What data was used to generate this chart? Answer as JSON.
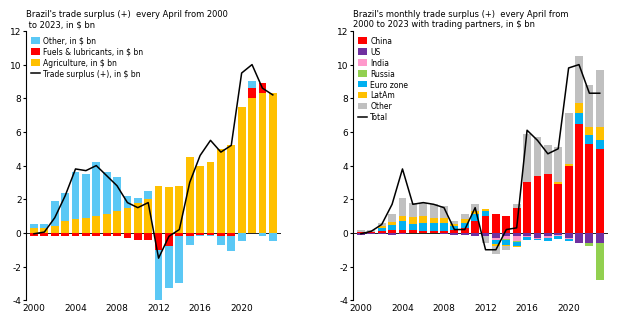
{
  "years": [
    2000,
    2001,
    2002,
    2003,
    2004,
    2005,
    2006,
    2007,
    2008,
    2009,
    2010,
    2011,
    2012,
    2013,
    2014,
    2015,
    2016,
    2017,
    2018,
    2019,
    2020,
    2021,
    2022,
    2023
  ],
  "left": {
    "agriculture": [
      0.3,
      0.3,
      0.4,
      0.7,
      0.8,
      0.9,
      1.0,
      1.1,
      1.3,
      1.5,
      1.8,
      2.0,
      2.8,
      2.7,
      2.8,
      4.5,
      4.0,
      4.2,
      5.0,
      5.2,
      7.5,
      8.0,
      8.3,
      8.3
    ],
    "fuels": [
      -0.2,
      -0.2,
      -0.2,
      -0.2,
      -0.2,
      -0.2,
      -0.2,
      -0.2,
      -0.2,
      -0.3,
      -0.4,
      -0.4,
      -1.0,
      -0.8,
      -0.2,
      -0.2,
      -0.1,
      -0.1,
      -0.2,
      -0.2,
      0.0,
      0.6,
      0.6,
      0.0
    ],
    "other": [
      0.2,
      0.2,
      1.5,
      1.7,
      2.8,
      2.6,
      3.2,
      2.5,
      2.0,
      0.7,
      0.3,
      0.5,
      -4.5,
      -2.5,
      -2.8,
      -0.5,
      -0.1,
      -0.1,
      -0.5,
      -0.9,
      -0.5,
      0.4,
      -0.2,
      -0.5
    ],
    "line": [
      -0.05,
      0.05,
      0.9,
      2.2,
      3.8,
      3.7,
      4.0,
      3.4,
      2.8,
      1.8,
      1.5,
      1.8,
      -1.5,
      -0.2,
      0.2,
      3.0,
      4.6,
      5.5,
      4.8,
      5.2,
      9.5,
      10.0,
      8.6,
      8.2
    ]
  },
  "right": {
    "china": [
      0.05,
      0.05,
      0.1,
      0.15,
      0.2,
      0.15,
      0.1,
      0.1,
      0.1,
      0.2,
      0.3,
      0.7,
      1.0,
      1.1,
      1.0,
      1.5,
      3.0,
      3.4,
      3.5,
      2.9,
      4.0,
      6.5,
      5.3,
      5.0
    ],
    "us": [
      -0.1,
      -0.05,
      -0.05,
      -0.1,
      -0.05,
      0.0,
      0.0,
      0.0,
      -0.05,
      -0.15,
      -0.1,
      -0.2,
      -0.2,
      -0.3,
      -0.2,
      -0.2,
      -0.2,
      -0.3,
      -0.2,
      -0.15,
      -0.3,
      -0.6,
      -0.6,
      -0.6
    ],
    "india": [
      0.0,
      0.0,
      0.0,
      0.0,
      0.0,
      0.0,
      0.0,
      0.0,
      0.0,
      0.0,
      0.0,
      0.0,
      0.0,
      -0.1,
      -0.15,
      -0.3,
      -0.05,
      -0.05,
      -0.1,
      -0.05,
      -0.05,
      0.0,
      0.0,
      0.0
    ],
    "russia": [
      0.0,
      0.0,
      0.0,
      0.0,
      0.0,
      0.0,
      0.0,
      0.0,
      0.0,
      0.0,
      0.0,
      0.0,
      0.0,
      -0.05,
      -0.05,
      -0.05,
      0.0,
      0.0,
      0.0,
      0.0,
      0.0,
      0.0,
      -0.2,
      -2.2
    ],
    "eurozone": [
      0.0,
      0.0,
      0.2,
      0.3,
      0.5,
      0.4,
      0.5,
      0.5,
      0.5,
      0.2,
      0.3,
      0.4,
      0.3,
      -0.2,
      -0.3,
      -0.2,
      -0.2,
      -0.1,
      -0.2,
      -0.15,
      -0.15,
      0.6,
      0.5,
      0.5
    ],
    "latam": [
      0.0,
      0.0,
      0.1,
      0.2,
      0.3,
      0.4,
      0.4,
      0.3,
      0.3,
      0.1,
      0.2,
      0.2,
      0.1,
      -0.1,
      -0.1,
      -0.1,
      0.0,
      0.0,
      0.0,
      0.1,
      0.1,
      0.6,
      0.5,
      0.8
    ],
    "other": [
      0.1,
      0.1,
      0.2,
      0.5,
      1.1,
      0.8,
      0.8,
      0.8,
      0.7,
      0.2,
      0.3,
      0.4,
      -0.4,
      -0.5,
      -0.2,
      0.2,
      2.9,
      2.3,
      1.7,
      2.1,
      3.0,
      2.8,
      2.5,
      3.4
    ],
    "line": [
      -0.05,
      0.1,
      0.5,
      1.7,
      3.8,
      1.7,
      1.8,
      1.7,
      1.5,
      0.2,
      0.2,
      1.5,
      -1.0,
      -1.0,
      0.2,
      0.3,
      6.1,
      5.5,
      4.7,
      5.0,
      9.8,
      10.0,
      8.3,
      8.3
    ]
  },
  "left_title": "Brazil's trade surplus (+)  every April from 2000\n to 2023, in $ bn",
  "right_title": "Brazil's monthly trade surplus (+)  every April from\n2000 to 2023 with trading partners, in $ bn",
  "ylim": [
    -4,
    12
  ],
  "yticks": [
    -4,
    -2,
    0,
    2,
    4,
    6,
    8,
    10,
    12
  ],
  "left_legend": [
    {
      "label": "Other, in $ bn",
      "color": "#5bc8f5"
    },
    {
      "label": "Fuels & lubricants, in $ bn",
      "color": "#ff0000"
    },
    {
      "label": "Agriculture, in $ bn",
      "color": "#ffc000"
    },
    {
      "label": "Trade surplus (+), in $ bn",
      "color": "#000000"
    }
  ],
  "right_legend": [
    {
      "label": "China",
      "color": "#ff0000"
    },
    {
      "label": "US",
      "color": "#7030a0"
    },
    {
      "label": "India",
      "color": "#ff99cc"
    },
    {
      "label": "Russia",
      "color": "#92d050"
    },
    {
      "label": "Euro zone",
      "color": "#00b0f0"
    },
    {
      "label": "LatAm",
      "color": "#ffc000"
    },
    {
      "label": "Other",
      "color": "#c0c0c0"
    },
    {
      "label": "Total",
      "color": "#000000"
    }
  ]
}
